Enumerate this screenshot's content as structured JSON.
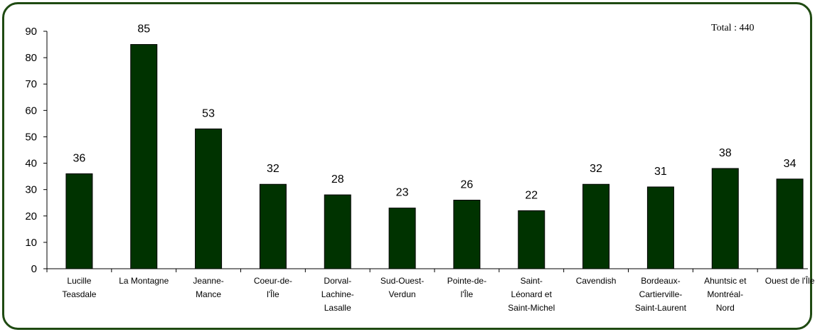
{
  "chart_data": {
    "type": "bar",
    "categories": [
      [
        "Lucille",
        "Teasdale"
      ],
      [
        "La Montagne"
      ],
      [
        "Jeanne-",
        "Mance"
      ],
      [
        "Coeur-de-",
        "l'Île"
      ],
      [
        "Dorval-",
        "Lachine-",
        "Lasalle"
      ],
      [
        "Sud-Ouest-",
        "Verdun"
      ],
      [
        "Pointe-de-",
        "l'Île"
      ],
      [
        "Saint-",
        "Léonard et",
        "Saint-Michel"
      ],
      [
        "Cavendish"
      ],
      [
        "Bordeaux-",
        "Cartierville-",
        "Saint-Laurent"
      ],
      [
        "Ahuntsic et",
        "Montréal-",
        "Nord"
      ],
      [
        "Ouest de l'Île"
      ]
    ],
    "values": [
      36,
      85,
      53,
      32,
      28,
      23,
      26,
      22,
      32,
      31,
      38,
      34
    ],
    "ylim": [
      0,
      90
    ],
    "yticks": [
      0,
      10,
      20,
      30,
      40,
      50,
      60,
      70,
      80,
      90
    ],
    "annotation": "Total : 440",
    "bar_color": "#003300",
    "frame_color": "#1f4a12",
    "grid": false
  }
}
